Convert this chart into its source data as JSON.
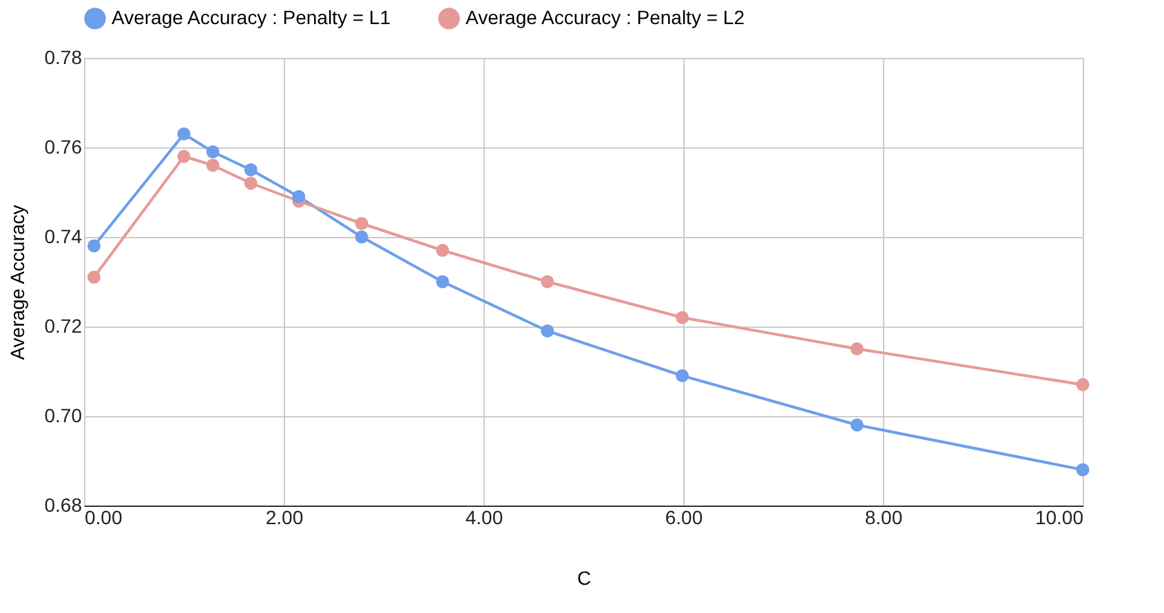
{
  "chart_data": {
    "type": "line",
    "xlabel": "C",
    "ylabel": "Average Accuracy",
    "x": [
      0.1,
      1,
      1.29,
      1.67,
      2.15,
      2.78,
      3.59,
      4.64,
      5.99,
      7.74,
      10
    ],
    "series": [
      {
        "name": "Average Accuracy : Penalty = L1",
        "color": "#6d9eeb",
        "values": [
          0.738,
          0.763,
          0.759,
          0.755,
          0.749,
          0.74,
          0.73,
          0.719,
          0.709,
          0.698,
          0.688
        ]
      },
      {
        "name": "Average Accuracy : Penalty = L2",
        "color": "#e69a98",
        "values": [
          0.731,
          0.758,
          0.756,
          0.752,
          0.748,
          0.743,
          0.737,
          0.73,
          0.722,
          0.715,
          0.707
        ]
      }
    ],
    "xlim": [
      0,
      10
    ],
    "xticks": [
      {
        "value": 0,
        "label": "0.00"
      },
      {
        "value": 2,
        "label": "2.00"
      },
      {
        "value": 4,
        "label": "4.00"
      },
      {
        "value": 6,
        "label": "6.00"
      },
      {
        "value": 8,
        "label": "8.00"
      },
      {
        "value": 10,
        "label": "10.00"
      }
    ],
    "ylim": [
      0.68,
      0.78
    ],
    "yticks": [
      {
        "value": 0.68,
        "label": "0.68"
      },
      {
        "value": 0.7,
        "label": "0.70"
      },
      {
        "value": 0.72,
        "label": "0.72"
      },
      {
        "value": 0.74,
        "label": "0.74"
      },
      {
        "value": 0.76,
        "label": "0.76"
      },
      {
        "value": 0.78,
        "label": "0.78"
      }
    ],
    "grid": true,
    "legend": "top",
    "marker": "circle",
    "line_style": "solid"
  }
}
